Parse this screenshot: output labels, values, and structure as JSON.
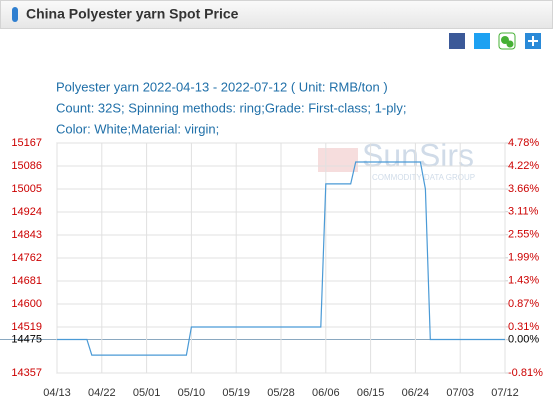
{
  "header": {
    "title": "China Polyester yarn Spot Price"
  },
  "chart_data": {
    "type": "line",
    "title": "Polyester yarn 2022-04-13 - 2022-07-12    ( Unit: RMB/ton )",
    "subtitle": [
      "Count: 32S; Spinning methods: ring;Grade: First-class; 1-ply;",
      "Color: White;Material: virgin;"
    ],
    "watermark": {
      "name": "SunSirs",
      "tagline": "COMMODITY DATA GROUP"
    },
    "x": [
      "04/13",
      "04/19",
      "04/20",
      "05/09",
      "05/10",
      "06/05",
      "06/06",
      "06/11",
      "06/12",
      "06/25",
      "06/26",
      "06/27",
      "07/12"
    ],
    "values": [
      14475,
      14475,
      14420,
      14420,
      14519,
      14519,
      15023,
      15023,
      15100,
      15100,
      15005,
      14475,
      14475
    ],
    "color": "#4a9ad6",
    "xlim": [
      "04/13",
      "07/12"
    ],
    "xticks": [
      "04/13",
      "04/22",
      "05/01",
      "05/10",
      "05/19",
      "05/28",
      "06/06",
      "06/15",
      "06/24",
      "07/03",
      "07/12"
    ],
    "ylim": [
      14357,
      15167
    ],
    "yticks": [
      14357,
      14519,
      14600,
      14681,
      14762,
      14843,
      14924,
      15005,
      15086,
      15167
    ],
    "baseline": 14475,
    "y2lim": [
      -0.81,
      4.78
    ],
    "y2ticks": [
      {
        "value": -0.81,
        "label": "-0.81%"
      },
      {
        "value": 0,
        "label": "0.00%"
      },
      {
        "value": 0.31,
        "label": "0.31%"
      },
      {
        "value": 0.87,
        "label": "0.87%"
      },
      {
        "value": 1.43,
        "label": "1.43%"
      },
      {
        "value": 1.99,
        "label": "1.99%"
      },
      {
        "value": 2.55,
        "label": "2.55%"
      },
      {
        "value": 3.11,
        "label": "3.11%"
      },
      {
        "value": 3.66,
        "label": "3.66%"
      },
      {
        "value": 4.22,
        "label": "4.22%"
      },
      {
        "value": 4.78,
        "label": "4.78%"
      }
    ],
    "grid": true,
    "tick_color": "#cc0000"
  }
}
